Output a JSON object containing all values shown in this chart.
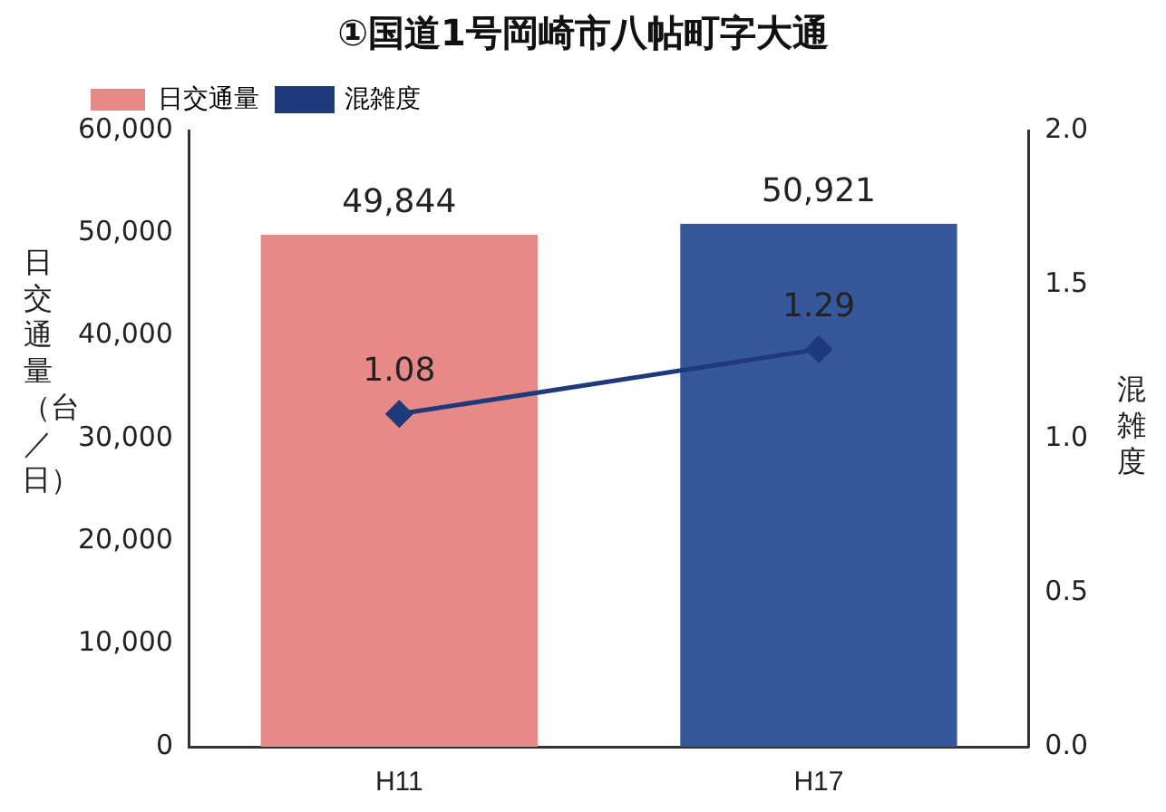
{
  "chart_data": {
    "type": "bar",
    "title": "①国道1号岡崎市八帖町字大通",
    "ylabel": "日交通量（台／日）",
    "y2label": "混雑度",
    "categories": [
      "H11",
      "H17"
    ],
    "series": [
      {
        "name": "日交通量",
        "colors": [
          "#e58a86",
          "#36589a"
        ],
        "values": [
          49844,
          50921
        ],
        "value_labels": [
          "49,844",
          "50,921"
        ]
      },
      {
        "name": "混雑度",
        "type": "line",
        "axis": "y2",
        "color": "#1f3a7a",
        "values": [
          1.08,
          1.29
        ],
        "value_labels": [
          "1.08",
          "1.29"
        ]
      }
    ],
    "ylim": [
      0,
      60000
    ],
    "yticks": [
      {
        "value": 0,
        "label": "0"
      },
      {
        "value": 10000,
        "label": "10,000"
      },
      {
        "value": 20000,
        "label": "20,000"
      },
      {
        "value": 30000,
        "label": "30,000"
      },
      {
        "value": 40000,
        "label": "40,000"
      },
      {
        "value": 50000,
        "label": "50,000"
      },
      {
        "value": 60000,
        "label": "60,000"
      }
    ],
    "y2lim": [
      0,
      2
    ],
    "y2ticks": [
      {
        "value": 0,
        "label": "0.0"
      },
      {
        "value": 0.5,
        "label": "0.5"
      },
      {
        "value": 1,
        "label": "1.0"
      },
      {
        "value": 1.5,
        "label": "1.5"
      },
      {
        "value": 2,
        "label": "2.0"
      }
    ],
    "legend": "top left",
    "marker": "diamond",
    "grid": false
  }
}
